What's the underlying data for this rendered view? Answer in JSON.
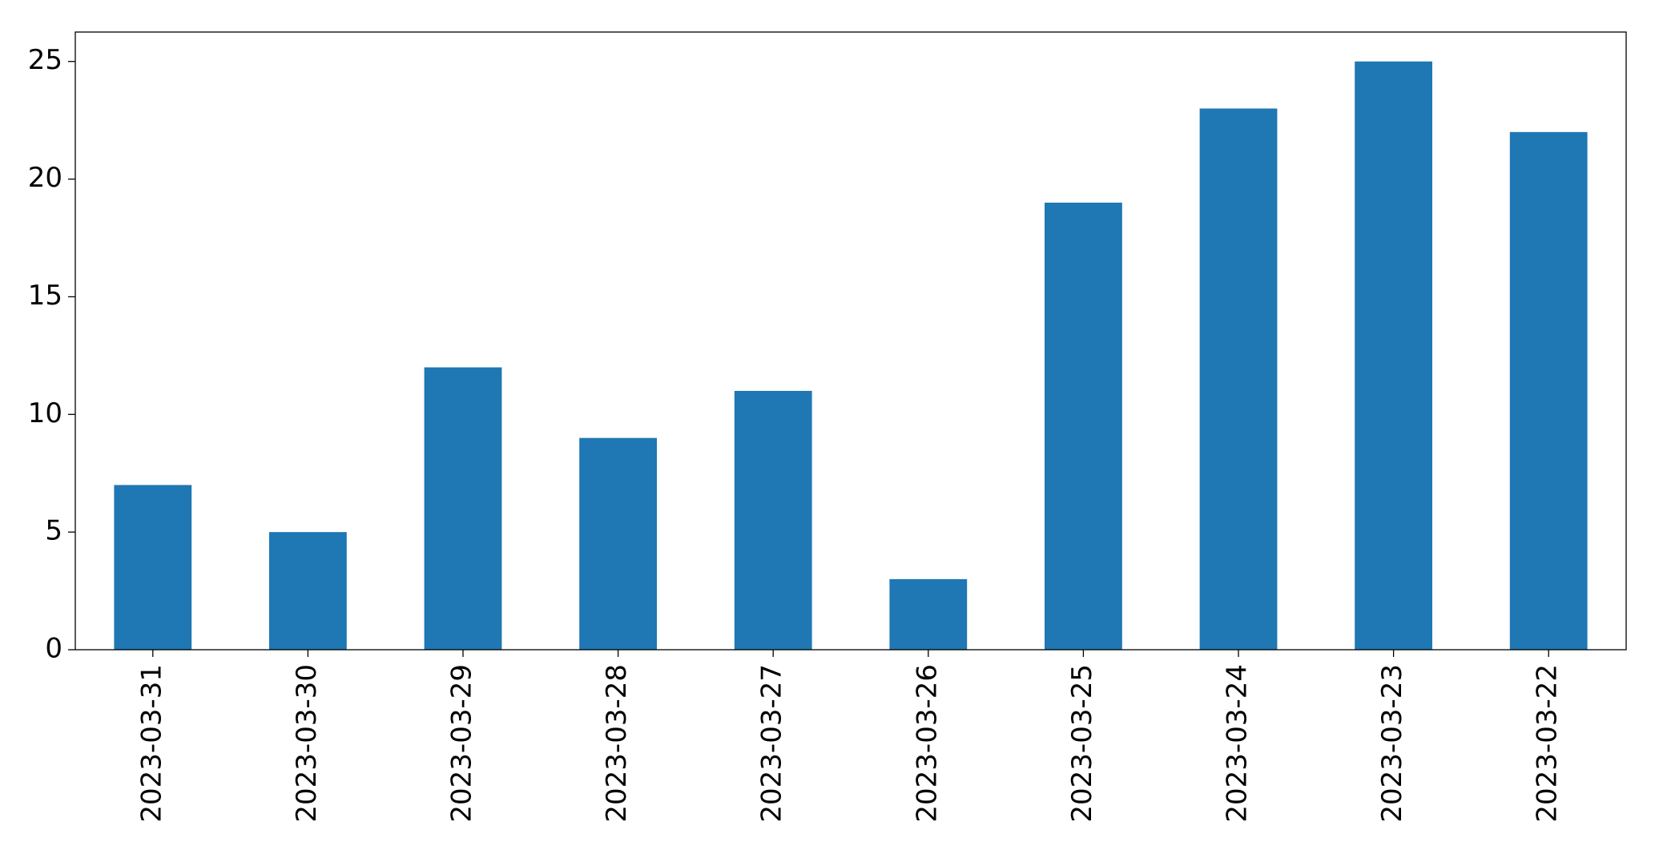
{
  "chart_data": {
    "type": "bar",
    "categories": [
      "2023-03-31",
      "2023-03-30",
      "2023-03-29",
      "2023-03-28",
      "2023-03-27",
      "2023-03-26",
      "2023-03-25",
      "2023-03-24",
      "2023-03-23",
      "2023-03-22"
    ],
    "values": [
      7,
      5,
      12,
      9,
      11,
      3,
      19,
      23,
      25,
      22
    ],
    "color": "#1f77b4",
    "ylim": [
      0,
      26.25
    ],
    "yticks": [
      0,
      5,
      10,
      15,
      20,
      25
    ],
    "grid": false
  }
}
